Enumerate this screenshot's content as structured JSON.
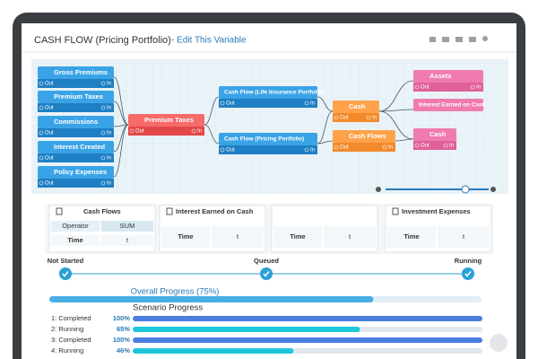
{
  "header": {
    "title": "CASH FLOW (Pricing Portfolio)",
    "link": "- Edit This Variable"
  },
  "diagram": {
    "nodes": [
      {
        "label": "Gross Premiums",
        "ports": [
          "Out",
          "In"
        ]
      },
      {
        "label": "Premium Taxes",
        "ports": [
          "Out",
          "In"
        ]
      },
      {
        "label": "Commissions",
        "ports": [
          "Out",
          "In"
        ]
      },
      {
        "label": "Interest Created",
        "ports": [
          "Out",
          "In"
        ]
      },
      {
        "label": "Policy Expenses",
        "ports": [
          "Out",
          "In"
        ]
      },
      {
        "label": "Premium Taxes",
        "ports": [
          "Out",
          "In"
        ]
      },
      {
        "label": "Cash Flow (Life Insurance Portfolio)",
        "ports": [
          "Out",
          "In"
        ]
      },
      {
        "label": "Cash Flow (Pricing Portfolio)",
        "ports": [
          "Out",
          "In"
        ]
      },
      {
        "label": "Cash",
        "ports": [
          "Out",
          "In"
        ]
      },
      {
        "label": "Cash Flows",
        "ports": [
          "Out",
          "In"
        ]
      },
      {
        "label": "Assets",
        "ports": [
          "Out",
          "In"
        ]
      },
      {
        "label": "Interest Earned on Cash",
        "ports": []
      },
      {
        "label": "Cash",
        "ports": [
          "Out",
          "In"
        ]
      }
    ]
  },
  "panels": [
    {
      "title": "Cash Flows",
      "rows": [
        [
          "Operator",
          "SUM"
        ],
        [
          "Time",
          "t"
        ]
      ]
    },
    {
      "title": "Interest Earned on Cash",
      "rows": [
        [
          "Time",
          "t"
        ]
      ]
    },
    {
      "title": null,
      "rows": [
        [
          "Time",
          "t"
        ]
      ]
    },
    {
      "title": "Investment Expenses",
      "rows": [
        [
          "Time",
          "t"
        ]
      ]
    }
  ],
  "steps": [
    "Not Started",
    "Queued",
    "Running"
  ],
  "overall": {
    "label": "Overall Progress  (75%)",
    "value": 75
  },
  "scenario_title": "Scenario Progress",
  "scenarios": [
    {
      "name": "1: Completed",
      "percent": {
        "value": 100,
        "label": "100%"
      }
    },
    {
      "name": "2: Running",
      "percent": {
        "value": 65,
        "label": "65%"
      }
    },
    {
      "name": "3: Completed",
      "percent": {
        "value": 100,
        "label": "100%"
      }
    },
    {
      "name": "4: Running",
      "percent": {
        "value": 46,
        "label": "46%"
      }
    }
  ]
}
